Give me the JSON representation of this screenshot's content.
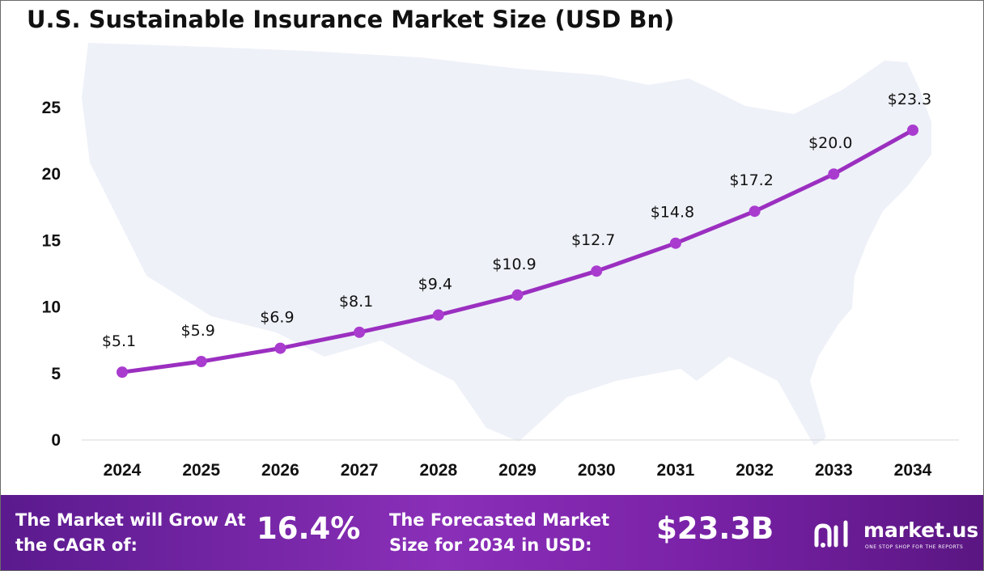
{
  "chart_data": {
    "type": "line",
    "title": "U.S. Sustainable Insurance Market Size (USD Bn)",
    "categories": [
      "2024",
      "2025",
      "2026",
      "2027",
      "2028",
      "2029",
      "2030",
      "2031",
      "2032",
      "2033",
      "2034"
    ],
    "values": [
      5.1,
      5.9,
      6.9,
      8.1,
      9.4,
      10.9,
      12.7,
      14.8,
      17.2,
      20.0,
      23.3
    ],
    "data_labels": [
      "$5.1",
      "$5.9",
      "$6.9",
      "$8.1",
      "$9.4",
      "$10.9",
      "$12.7",
      "$14.8",
      "$17.2",
      "$20.0",
      "$23.3"
    ],
    "yticks": [
      "0",
      "5",
      "10",
      "15",
      "20",
      "25"
    ],
    "ylim": [
      0,
      25
    ],
    "grid": false,
    "colors": {
      "line": "#9b2fc0",
      "marker": "#a93ccf",
      "map": "#eef1f8"
    }
  },
  "footer": {
    "cagr_text": "The Market will Grow At the CAGR of:",
    "cagr_value": "16.4%",
    "forecast_text": "The Forecasted Market Size for 2034 in USD:",
    "forecast_value": "$23.3B",
    "logo_name": "market.us",
    "logo_tagline": "ONE STOP SHOP FOR THE REPORTS"
  }
}
